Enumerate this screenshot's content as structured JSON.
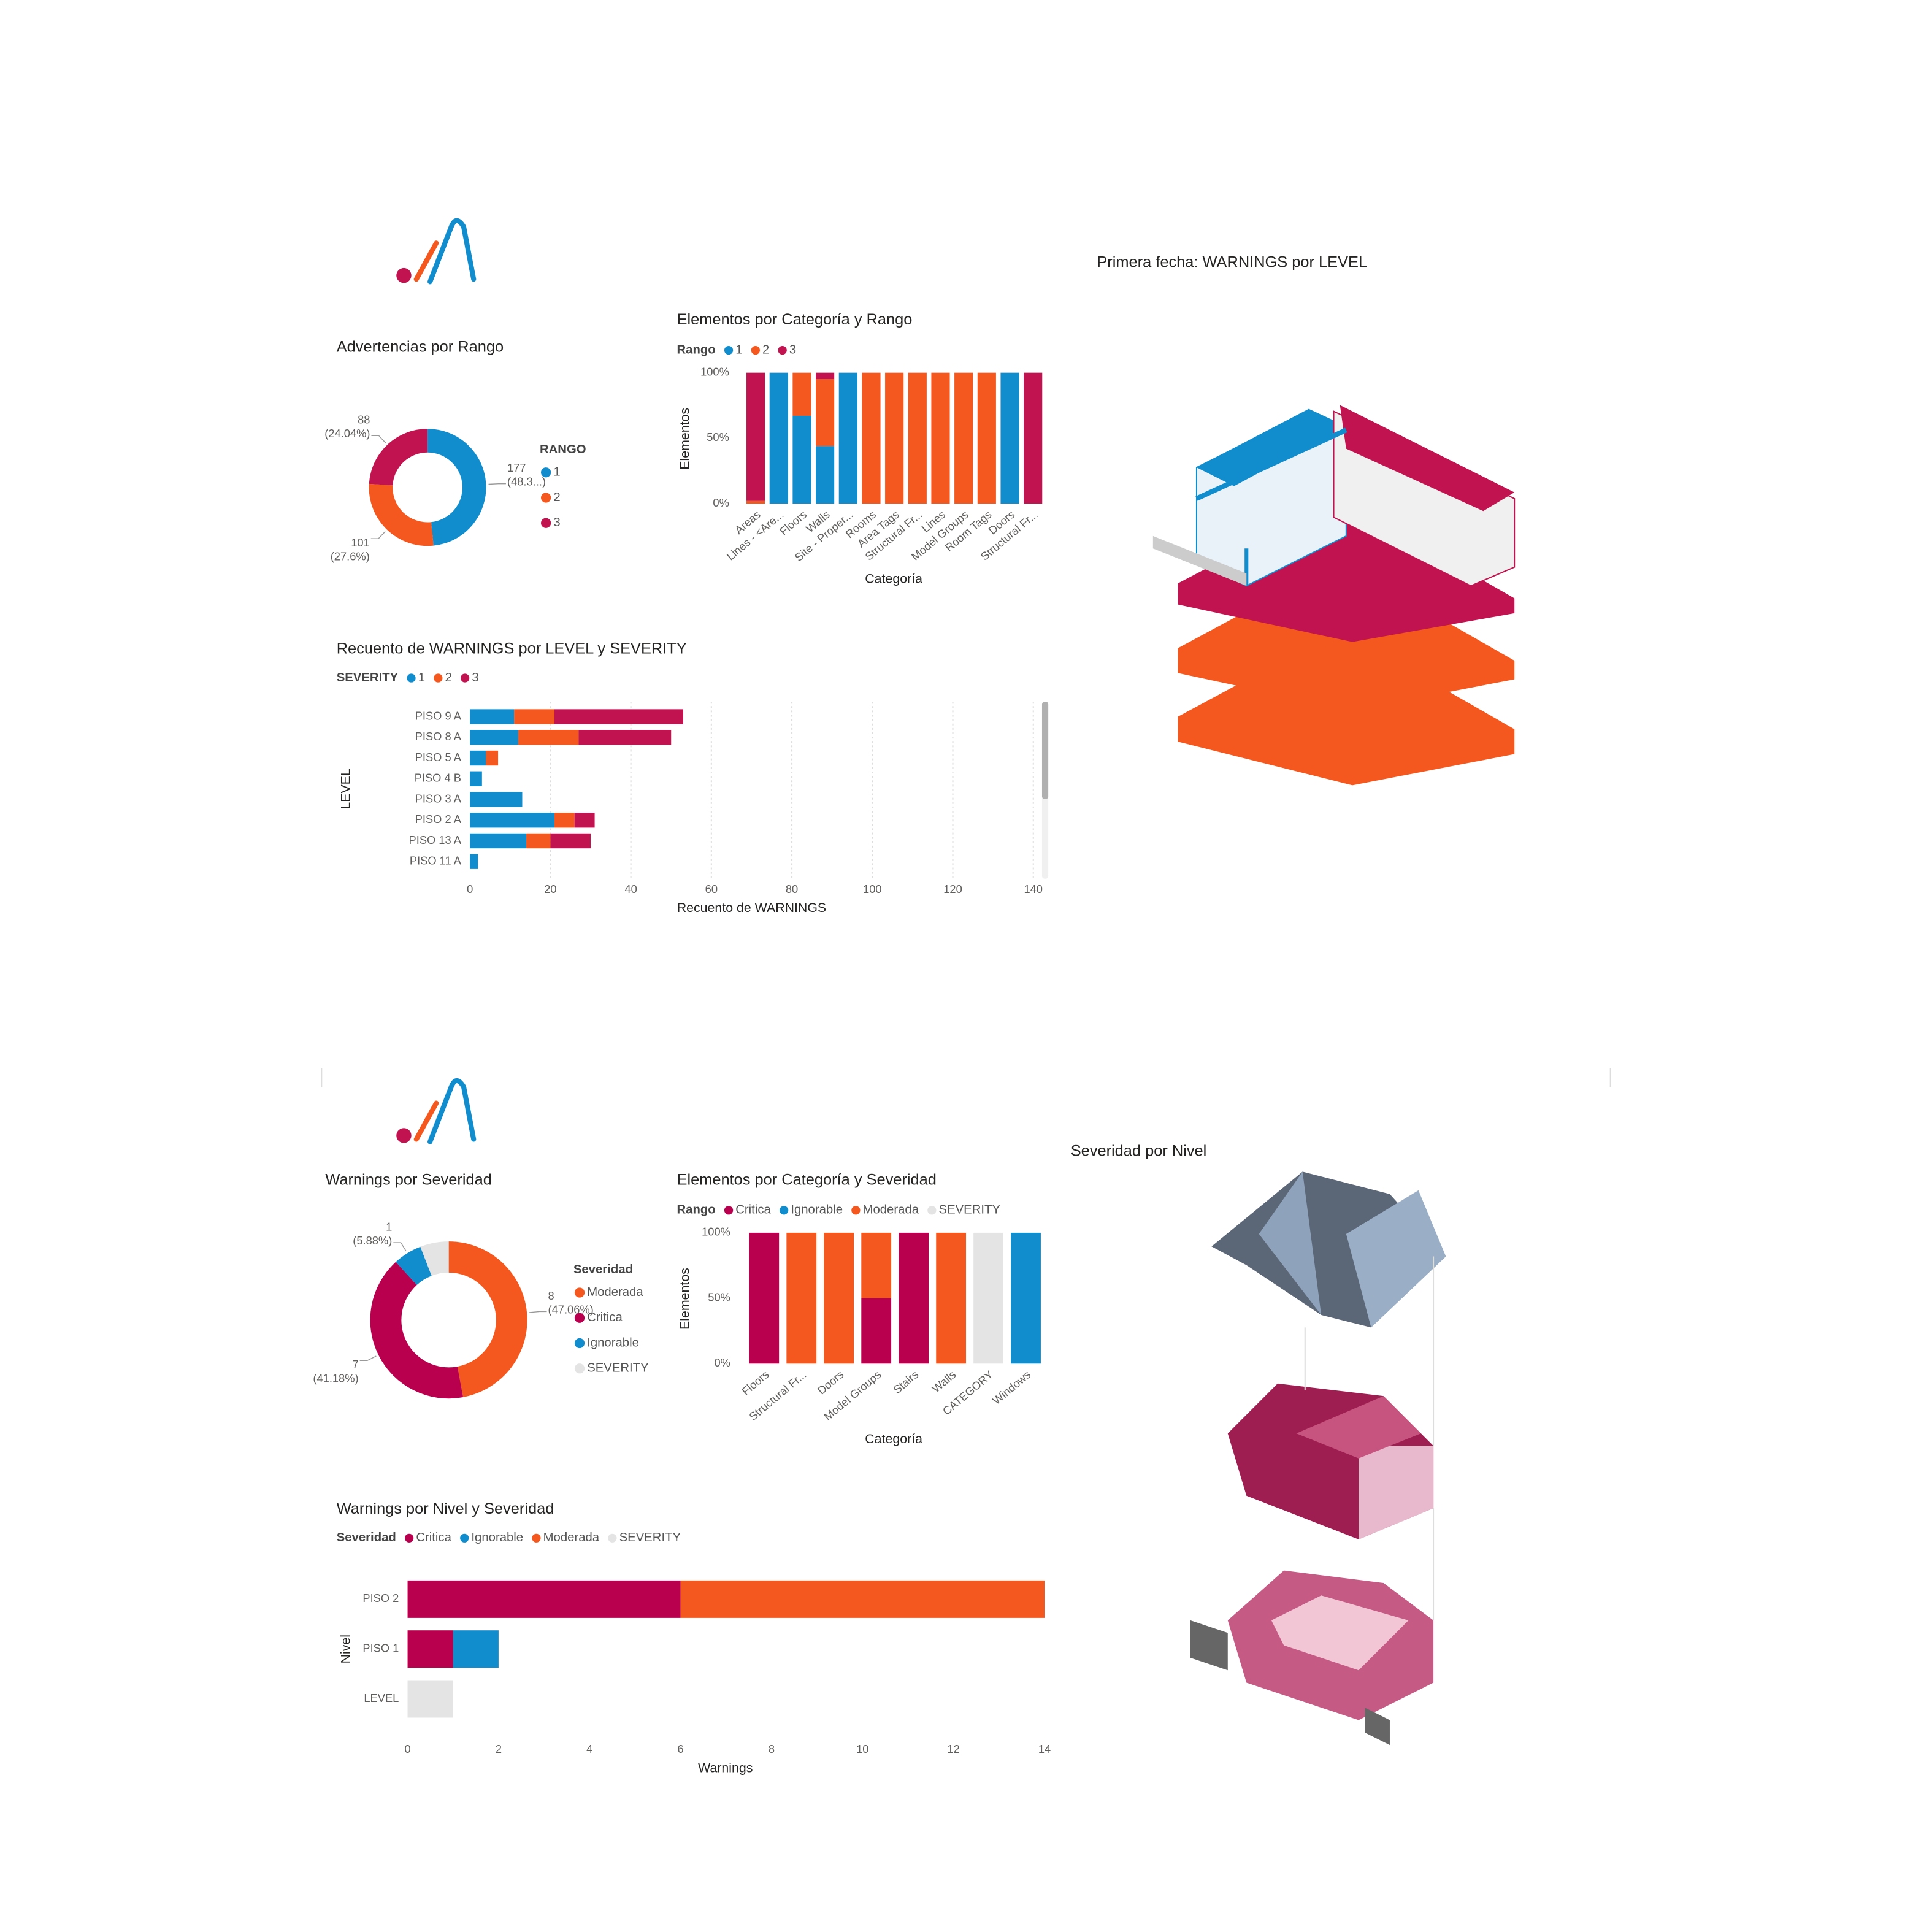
{
  "chart_data": [
    {
      "type": "donut",
      "title": "Advertencias por Rango",
      "legend_title": "RANGO",
      "categories": [
        "1",
        "2",
        "3"
      ],
      "values": [
        177,
        101,
        88
      ],
      "percent_labels": [
        "(48.3...)",
        "(27.6%)",
        "(24.04%)"
      ],
      "colors": [
        "#118dce",
        "#f4581e",
        "#c0134f"
      ]
    },
    {
      "type": "column",
      "stacked": true,
      "title": "Elementos por Categoría y Rango",
      "legend_title": "Rango",
      "categories": [
        "Areas",
        "Lines - <Are...",
        "Floors",
        "Walls",
        "Site - Proper...",
        "Rooms",
        "Area Tags",
        "Structural Fr...",
        "Lines",
        "Model Groups",
        "Room Tags",
        "Doors",
        "Structural Fr..."
      ],
      "series": [
        {
          "name": "1",
          "color": "#118dce",
          "values": [
            null,
            100,
            67,
            44,
            100,
            null,
            null,
            null,
            null,
            null,
            null,
            100,
            null
          ]
        },
        {
          "name": "2",
          "color": "#f4581e",
          "values": [
            2,
            null,
            33,
            51,
            null,
            100,
            100,
            100,
            100,
            100,
            100,
            null,
            null
          ]
        },
        {
          "name": "3",
          "color": "#c0134f",
          "values": [
            98,
            null,
            null,
            5,
            null,
            null,
            null,
            null,
            null,
            null,
            null,
            null,
            100
          ]
        }
      ],
      "ylim": [
        0,
        100
      ],
      "yticks": [
        {
          "value": 0,
          "label": "0%"
        },
        {
          "value": 50,
          "label": "50%"
        },
        {
          "value": 100,
          "label": "100%"
        }
      ],
      "x_label": "Categoría",
      "y_label": "Elementos",
      "grid": false
    },
    {
      "type": "bar",
      "stacked": true,
      "title": "Recuento de WARNINGS por LEVEL y SEVERITY",
      "legend_title": "SEVERITY",
      "categories": [
        "PISO 9 A",
        "PISO 8 A",
        "PISO 5 A",
        "PISO 4 B",
        "PISO 3 A",
        "PISO 2 A",
        "PISO 13 A",
        "PISO 11 A"
      ],
      "series": [
        {
          "name": "1",
          "color": "#118dce",
          "values": [
            11,
            12,
            4,
            3,
            13,
            21,
            14,
            2
          ]
        },
        {
          "name": "2",
          "color": "#f4581e",
          "values": [
            10,
            15,
            3,
            null,
            null,
            5,
            6,
            null
          ]
        },
        {
          "name": "3",
          "color": "#c0134f",
          "values": [
            32,
            23,
            null,
            null,
            null,
            5,
            10,
            null
          ]
        }
      ],
      "xlim": [
        0,
        140
      ],
      "xticks": [
        0,
        20,
        40,
        60,
        80,
        100,
        120,
        140
      ],
      "x_label": "Recuento de WARNINGS",
      "y_label": "LEVEL",
      "grid": true
    },
    {
      "type": "donut",
      "title": "Warnings por Severidad",
      "legend_title": "Severidad",
      "categories": [
        "Moderada",
        "Critica",
        "Ignorable",
        "SEVERITY"
      ],
      "values": [
        8,
        7,
        1,
        1
      ],
      "percent_labels": [
        "(47.06%)",
        "(41.18%)",
        "(5.88%)",
        null
      ],
      "colors": [
        "#f4581e",
        "#b8004e",
        "#118dce",
        "#e4e4e4"
      ]
    },
    {
      "type": "column",
      "stacked": true,
      "title": "Elementos por Categoría y Severidad",
      "legend_title": "Rango",
      "categories": [
        "Floors",
        "Structural Fr...",
        "Doors",
        "Model Groups",
        "Stairs",
        "Walls",
        "CATEGORY",
        "Windows"
      ],
      "series": [
        {
          "name": "Critica",
          "color": "#b8004e",
          "values": [
            100,
            null,
            null,
            50,
            100,
            null,
            null,
            null
          ]
        },
        {
          "name": "Ignorable",
          "color": "#118dce",
          "values": [
            null,
            null,
            null,
            null,
            null,
            null,
            null,
            100
          ]
        },
        {
          "name": "Moderada",
          "color": "#f4581e",
          "values": [
            null,
            100,
            100,
            50,
            null,
            100,
            null,
            null
          ]
        },
        {
          "name": "SEVERITY",
          "color": "#e4e4e4",
          "values": [
            null,
            null,
            null,
            null,
            null,
            null,
            100,
            null
          ]
        }
      ],
      "ylim": [
        0,
        100
      ],
      "yticks": [
        {
          "value": 0,
          "label": "0%"
        },
        {
          "value": 50,
          "label": "50%"
        },
        {
          "value": 100,
          "label": "100%"
        }
      ],
      "x_label": "Categoría",
      "y_label": "Elementos",
      "grid": false
    },
    {
      "type": "bar",
      "stacked": true,
      "title": "Warnings por Nivel y Severidad",
      "legend_title": "Severidad",
      "categories": [
        "PISO 2",
        "PISO 1",
        "LEVEL"
      ],
      "series": [
        {
          "name": "Critica",
          "color": "#b8004e",
          "values": [
            6,
            1,
            null
          ]
        },
        {
          "name": "Ignorable",
          "color": "#118dce",
          "values": [
            null,
            1,
            null
          ]
        },
        {
          "name": "Moderada",
          "color": "#f4581e",
          "values": [
            8,
            null,
            null
          ]
        },
        {
          "name": "SEVERITY",
          "color": "#e4e4e4",
          "values": [
            null,
            null,
            1
          ]
        }
      ],
      "xlim": [
        0,
        14
      ],
      "xticks": [
        0,
        2,
        4,
        6,
        8,
        10,
        12,
        14
      ],
      "x_label": "Warnings",
      "y_label": "Nivel",
      "grid": false
    }
  ],
  "images": [
    {
      "title": "Primera fecha: WARNINGS por LEVEL"
    },
    {
      "title": "Severidad por Nivel"
    }
  ]
}
